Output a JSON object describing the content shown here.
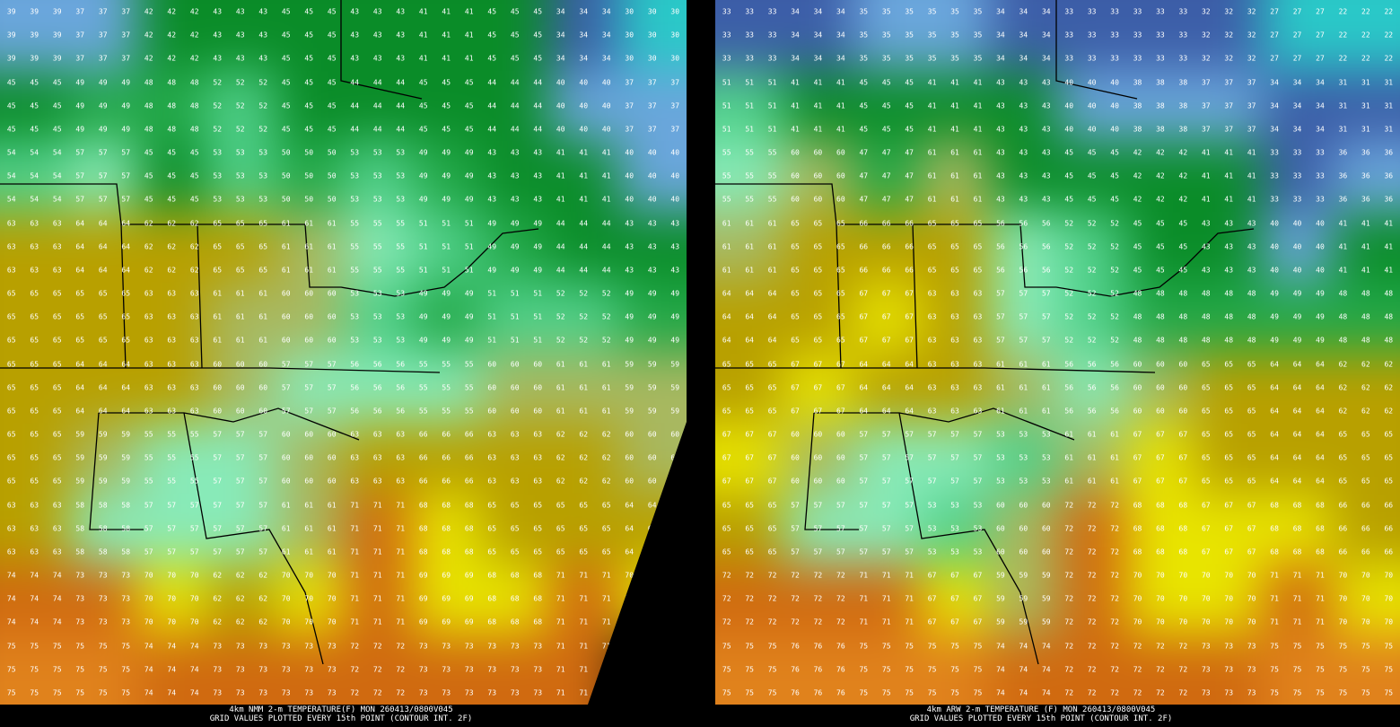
{
  "panels": [
    {
      "model": "4km NMM",
      "title": "4km NMM 2-m TEMPERATURE(F) MON 260413/0800V045",
      "subtitle": "GRID VALUES PLOTTED EVERY 15th POINT (CONTOUR INT. 2F)",
      "grid_values": [
        [
          39,
          37,
          42,
          43,
          45,
          43,
          41,
          45,
          34,
          30
        ],
        [
          45,
          49,
          48,
          52,
          45,
          44,
          45,
          44,
          40,
          37
        ],
        [
          54,
          57,
          45,
          53,
          50,
          53,
          49,
          43,
          41,
          40
        ],
        [
          63,
          64,
          62,
          65,
          61,
          55,
          51,
          49,
          44,
          43
        ],
        [
          65,
          65,
          63,
          61,
          60,
          53,
          49,
          51,
          52,
          49
        ],
        [
          65,
          64,
          63,
          60,
          57,
          56,
          55,
          60,
          61,
          59
        ],
        [
          65,
          59,
          55,
          57,
          60,
          63,
          66,
          63,
          62,
          60
        ],
        [
          63,
          58,
          57,
          57,
          61,
          71,
          68,
          65,
          65,
          64
        ],
        [
          74,
          73,
          70,
          62,
          70,
          71,
          69,
          68,
          71,
          70
        ],
        [
          75,
          75,
          74,
          73,
          73,
          72,
          73,
          73,
          71,
          null
        ]
      ]
    },
    {
      "model": "4km ARW",
      "title": "4km ARW 2-m TEMPERATURE (F) MON 260413/0800V045",
      "subtitle": "GRID VALUES PLOTTED EVERY 15th POINT (CONTOUR INT. 2F)",
      "grid_values": [
        [
          33,
          34,
          35,
          35,
          34,
          33,
          33,
          32,
          27,
          22
        ],
        [
          51,
          41,
          45,
          41,
          43,
          40,
          38,
          37,
          34,
          31
        ],
        [
          55,
          60,
          47,
          61,
          43,
          45,
          42,
          41,
          33,
          36
        ],
        [
          61,
          65,
          66,
          65,
          56,
          52,
          45,
          43,
          40,
          41
        ],
        [
          64,
          65,
          67,
          63,
          57,
          52,
          48,
          48,
          49,
          48
        ],
        [
          65,
          67,
          64,
          63,
          61,
          56,
          60,
          65,
          64,
          62
        ],
        [
          67,
          60,
          57,
          57,
          53,
          61,
          67,
          65,
          64,
          65
        ],
        [
          65,
          57,
          57,
          53,
          60,
          72,
          68,
          67,
          68,
          66
        ],
        [
          72,
          72,
          71,
          67,
          59,
          72,
          70,
          70,
          71,
          70
        ],
        [
          75,
          76,
          75,
          75,
          74,
          72,
          72,
          73,
          75,
          75
        ]
      ]
    }
  ],
  "color_scale": [
    {
      "max": 30,
      "color": "#2ac8c8"
    },
    {
      "max": 34,
      "color": "#3c5ea8"
    },
    {
      "max": 40,
      "color": "#6aa6dc"
    },
    {
      "max": 46,
      "color": "#0a8c28"
    },
    {
      "max": 50,
      "color": "#22a848"
    },
    {
      "max": 54,
      "color": "#50d08a"
    },
    {
      "max": 58,
      "color": "#88eab8"
    },
    {
      "max": 61,
      "color": "#a8b860"
    },
    {
      "max": 66,
      "color": "#b8a000"
    },
    {
      "max": 70,
      "color": "#e8e400"
    },
    {
      "max": 74,
      "color": "#d06a10"
    },
    {
      "max": 99,
      "color": "#e0821c"
    }
  ]
}
